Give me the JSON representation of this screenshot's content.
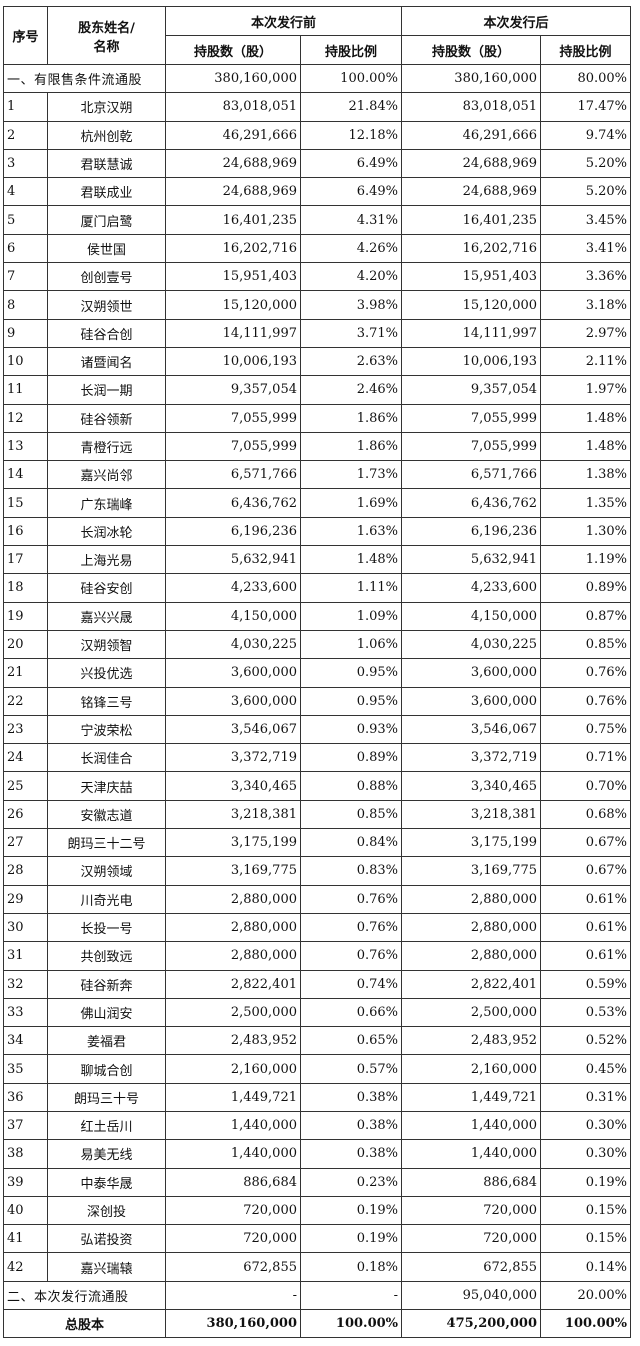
{
  "headers": {
    "index": "序号",
    "name_line1": "股东姓名/",
    "name_line2": "名称",
    "before": "本次发行前",
    "after": "本次发行后",
    "shares": "持股数（股）",
    "ratio": "持股比例"
  },
  "section1": {
    "label": "一、有限售条件流通股",
    "before_shares": "380,160,000",
    "before_ratio": "100.00%",
    "after_shares": "380,160,000",
    "after_ratio": "80.00%"
  },
  "rows": [
    {
      "idx": "1",
      "name": "北京汉朔",
      "before_shares": "83,018,051",
      "before_ratio": "21.84%",
      "after_shares": "83,018,051",
      "after_ratio": "17.47%"
    },
    {
      "idx": "2",
      "name": "杭州创乾",
      "before_shares": "46,291,666",
      "before_ratio": "12.18%",
      "after_shares": "46,291,666",
      "after_ratio": "9.74%"
    },
    {
      "idx": "3",
      "name": "君联慧诚",
      "before_shares": "24,688,969",
      "before_ratio": "6.49%",
      "after_shares": "24,688,969",
      "after_ratio": "5.20%"
    },
    {
      "idx": "4",
      "name": "君联成业",
      "before_shares": "24,688,969",
      "before_ratio": "6.49%",
      "after_shares": "24,688,969",
      "after_ratio": "5.20%"
    },
    {
      "idx": "5",
      "name": "厦门启鹭",
      "before_shares": "16,401,235",
      "before_ratio": "4.31%",
      "after_shares": "16,401,235",
      "after_ratio": "3.45%"
    },
    {
      "idx": "6",
      "name": "侯世国",
      "before_shares": "16,202,716",
      "before_ratio": "4.26%",
      "after_shares": "16,202,716",
      "after_ratio": "3.41%"
    },
    {
      "idx": "7",
      "name": "创创壹号",
      "before_shares": "15,951,403",
      "before_ratio": "4.20%",
      "after_shares": "15,951,403",
      "after_ratio": "3.36%"
    },
    {
      "idx": "8",
      "name": "汉朔领世",
      "before_shares": "15,120,000",
      "before_ratio": "3.98%",
      "after_shares": "15,120,000",
      "after_ratio": "3.18%"
    },
    {
      "idx": "9",
      "name": "硅谷合创",
      "before_shares": "14,111,997",
      "before_ratio": "3.71%",
      "after_shares": "14,111,997",
      "after_ratio": "2.97%"
    },
    {
      "idx": "10",
      "name": "诸暨闻名",
      "before_shares": "10,006,193",
      "before_ratio": "2.63%",
      "after_shares": "10,006,193",
      "after_ratio": "2.11%"
    },
    {
      "idx": "11",
      "name": "长润一期",
      "before_shares": "9,357,054",
      "before_ratio": "2.46%",
      "after_shares": "9,357,054",
      "after_ratio": "1.97%"
    },
    {
      "idx": "12",
      "name": "硅谷领新",
      "before_shares": "7,055,999",
      "before_ratio": "1.86%",
      "after_shares": "7,055,999",
      "after_ratio": "1.48%"
    },
    {
      "idx": "13",
      "name": "青橙行远",
      "before_shares": "7,055,999",
      "before_ratio": "1.86%",
      "after_shares": "7,055,999",
      "after_ratio": "1.48%"
    },
    {
      "idx": "14",
      "name": "嘉兴尚邻",
      "before_shares": "6,571,766",
      "before_ratio": "1.73%",
      "after_shares": "6,571,766",
      "after_ratio": "1.38%"
    },
    {
      "idx": "15",
      "name": "广东瑞峰",
      "before_shares": "6,436,762",
      "before_ratio": "1.69%",
      "after_shares": "6,436,762",
      "after_ratio": "1.35%"
    },
    {
      "idx": "16",
      "name": "长润冰轮",
      "before_shares": "6,196,236",
      "before_ratio": "1.63%",
      "after_shares": "6,196,236",
      "after_ratio": "1.30%"
    },
    {
      "idx": "17",
      "name": "上海光易",
      "before_shares": "5,632,941",
      "before_ratio": "1.48%",
      "after_shares": "5,632,941",
      "after_ratio": "1.19%"
    },
    {
      "idx": "18",
      "name": "硅谷安创",
      "before_shares": "4,233,600",
      "before_ratio": "1.11%",
      "after_shares": "4,233,600",
      "after_ratio": "0.89%"
    },
    {
      "idx": "19",
      "name": "嘉兴兴晟",
      "before_shares": "4,150,000",
      "before_ratio": "1.09%",
      "after_shares": "4,150,000",
      "after_ratio": "0.87%"
    },
    {
      "idx": "20",
      "name": "汉朔领智",
      "before_shares": "4,030,225",
      "before_ratio": "1.06%",
      "after_shares": "4,030,225",
      "after_ratio": "0.85%"
    },
    {
      "idx": "21",
      "name": "兴投优选",
      "before_shares": "3,600,000",
      "before_ratio": "0.95%",
      "after_shares": "3,600,000",
      "after_ratio": "0.76%"
    },
    {
      "idx": "22",
      "name": "铭锋三号",
      "before_shares": "3,600,000",
      "before_ratio": "0.95%",
      "after_shares": "3,600,000",
      "after_ratio": "0.76%"
    },
    {
      "idx": "23",
      "name": "宁波荣松",
      "before_shares": "3,546,067",
      "before_ratio": "0.93%",
      "after_shares": "3,546,067",
      "after_ratio": "0.75%"
    },
    {
      "idx": "24",
      "name": "长润佳合",
      "before_shares": "3,372,719",
      "before_ratio": "0.89%",
      "after_shares": "3,372,719",
      "after_ratio": "0.71%"
    },
    {
      "idx": "25",
      "name": "天津庆喆",
      "before_shares": "3,340,465",
      "before_ratio": "0.88%",
      "after_shares": "3,340,465",
      "after_ratio": "0.70%"
    },
    {
      "idx": "26",
      "name": "安徽志道",
      "before_shares": "3,218,381",
      "before_ratio": "0.85%",
      "after_shares": "3,218,381",
      "after_ratio": "0.68%"
    },
    {
      "idx": "27",
      "name": "朗玛三十二号",
      "before_shares": "3,175,199",
      "before_ratio": "0.84%",
      "after_shares": "3,175,199",
      "after_ratio": "0.67%"
    },
    {
      "idx": "28",
      "name": "汉朔领域",
      "before_shares": "3,169,775",
      "before_ratio": "0.83%",
      "after_shares": "3,169,775",
      "after_ratio": "0.67%"
    },
    {
      "idx": "29",
      "name": "川奇光电",
      "before_shares": "2,880,000",
      "before_ratio": "0.76%",
      "after_shares": "2,880,000",
      "after_ratio": "0.61%"
    },
    {
      "idx": "30",
      "name": "长投一号",
      "before_shares": "2,880,000",
      "before_ratio": "0.76%",
      "after_shares": "2,880,000",
      "after_ratio": "0.61%"
    },
    {
      "idx": "31",
      "name": "共创致远",
      "before_shares": "2,880,000",
      "before_ratio": "0.76%",
      "after_shares": "2,880,000",
      "after_ratio": "0.61%"
    },
    {
      "idx": "32",
      "name": "硅谷新奔",
      "before_shares": "2,822,401",
      "before_ratio": "0.74%",
      "after_shares": "2,822,401",
      "after_ratio": "0.59%"
    },
    {
      "idx": "33",
      "name": "佛山润安",
      "before_shares": "2,500,000",
      "before_ratio": "0.66%",
      "after_shares": "2,500,000",
      "after_ratio": "0.53%"
    },
    {
      "idx": "34",
      "name": "姜福君",
      "before_shares": "2,483,952",
      "before_ratio": "0.65%",
      "after_shares": "2,483,952",
      "after_ratio": "0.52%"
    },
    {
      "idx": "35",
      "name": "聊城合创",
      "before_shares": "2,160,000",
      "before_ratio": "0.57%",
      "after_shares": "2,160,000",
      "after_ratio": "0.45%"
    },
    {
      "idx": "36",
      "name": "朗玛三十号",
      "before_shares": "1,449,721",
      "before_ratio": "0.38%",
      "after_shares": "1,449,721",
      "after_ratio": "0.31%"
    },
    {
      "idx": "37",
      "name": "红土岳川",
      "before_shares": "1,440,000",
      "before_ratio": "0.38%",
      "after_shares": "1,440,000",
      "after_ratio": "0.30%"
    },
    {
      "idx": "38",
      "name": "易美无线",
      "before_shares": "1,440,000",
      "before_ratio": "0.38%",
      "after_shares": "1,440,000",
      "after_ratio": "0.30%"
    },
    {
      "idx": "39",
      "name": "中泰华晟",
      "before_shares": "886,684",
      "before_ratio": "0.23%",
      "after_shares": "886,684",
      "after_ratio": "0.19%"
    },
    {
      "idx": "40",
      "name": "深创投",
      "before_shares": "720,000",
      "before_ratio": "0.19%",
      "after_shares": "720,000",
      "after_ratio": "0.15%"
    },
    {
      "idx": "41",
      "name": "弘诺投资",
      "before_shares": "720,000",
      "before_ratio": "0.19%",
      "after_shares": "720,000",
      "after_ratio": "0.15%"
    },
    {
      "idx": "42",
      "name": "嘉兴瑞辕",
      "before_shares": "672,855",
      "before_ratio": "0.18%",
      "after_shares": "672,855",
      "after_ratio": "0.14%"
    }
  ],
  "section2": {
    "label": "二、本次发行流通股",
    "before_shares": "-",
    "before_ratio": "-",
    "after_shares": "95,040,000",
    "after_ratio": "20.00%"
  },
  "total": {
    "label": "总股本",
    "before_shares": "380,160,000",
    "before_ratio": "100.00%",
    "after_shares": "475,200,000",
    "after_ratio": "100.00%"
  }
}
